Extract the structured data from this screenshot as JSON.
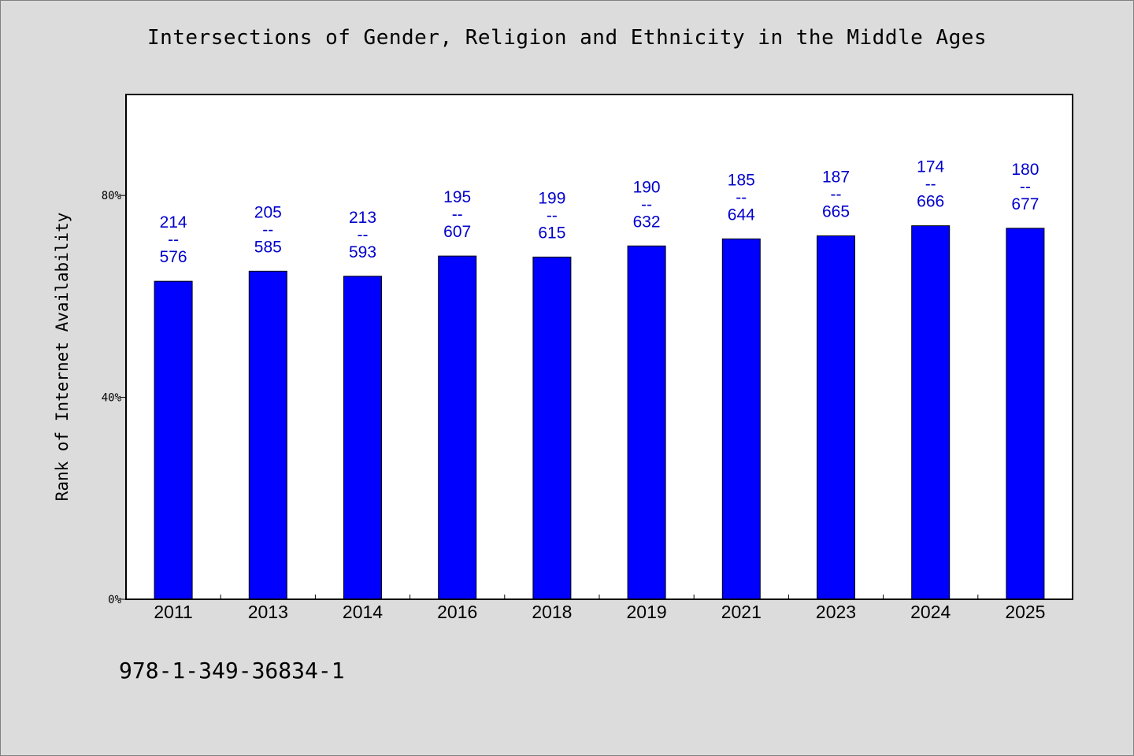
{
  "chart_data": {
    "type": "bar",
    "title": "Intersections of Gender, Religion and Ethnicity in the Middle Ages",
    "xlabel": "",
    "ylabel": "Rank of Internet Availability",
    "categories": [
      "2011",
      "2013",
      "2014",
      "2016",
      "2018",
      "2019",
      "2021",
      "2023",
      "2024",
      "2025"
    ],
    "values": [
      63.0,
      65.0,
      64.0,
      68.0,
      67.8,
      70.0,
      71.4,
      72.0,
      74.0,
      73.5
    ],
    "value_unit": "%",
    "data_labels": [
      {
        "top": "214",
        "sep": "--",
        "bottom": "576"
      },
      {
        "top": "205",
        "sep": "--",
        "bottom": "585"
      },
      {
        "top": "213",
        "sep": "--",
        "bottom": "593"
      },
      {
        "top": "195",
        "sep": "--",
        "bottom": "607"
      },
      {
        "top": "199",
        "sep": "--",
        "bottom": "615"
      },
      {
        "top": "190",
        "sep": "--",
        "bottom": "632"
      },
      {
        "top": "185",
        "sep": "--",
        "bottom": "644"
      },
      {
        "top": "187",
        "sep": "--",
        "bottom": "665"
      },
      {
        "top": "174",
        "sep": "--",
        "bottom": "666"
      },
      {
        "top": "180",
        "sep": "--",
        "bottom": "677"
      }
    ],
    "ylim": [
      0,
      100
    ],
    "yticks": [
      0,
      40,
      80
    ],
    "ytick_labels": [
      "0%",
      "40%",
      "80%"
    ],
    "grid": false,
    "colors": {
      "bar": "#0000ff",
      "bar_edge": "#000000",
      "data_label": "#0000cc",
      "plot_background": "#ffffff",
      "page_background": "#dcdcdc"
    }
  },
  "footnote": "978-1-349-36834-1"
}
